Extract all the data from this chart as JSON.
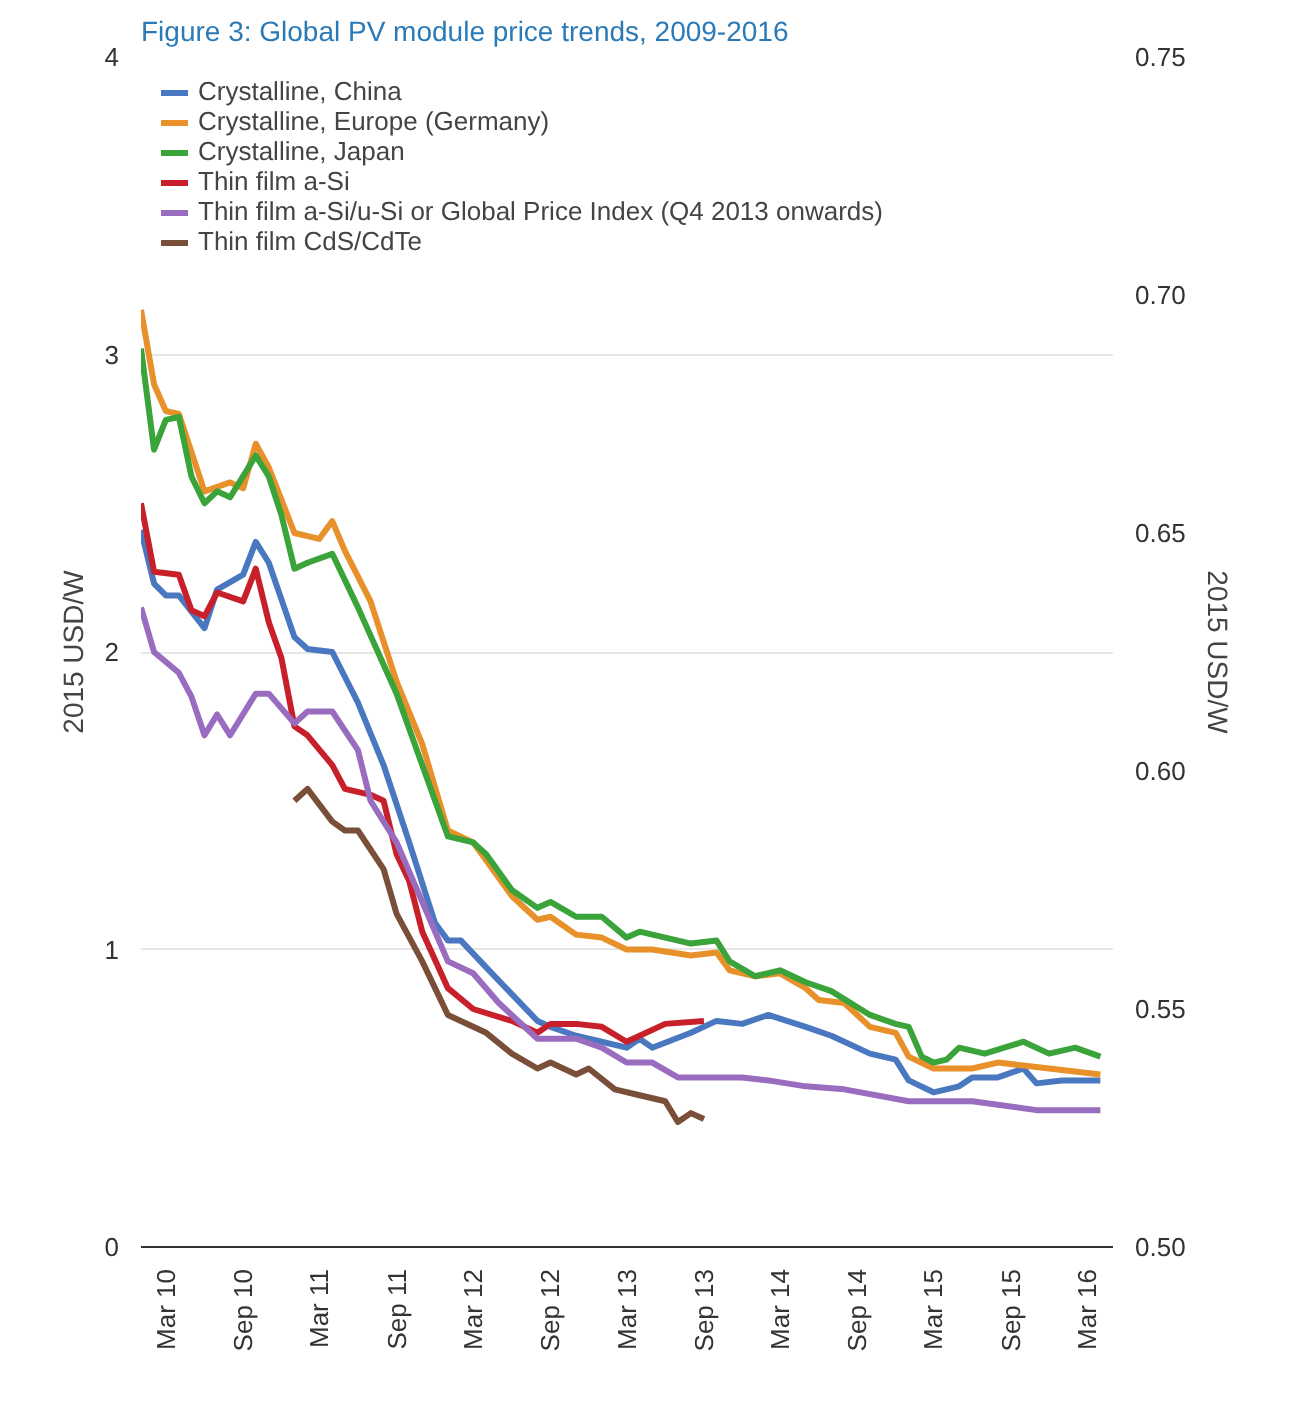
{
  "chart_data": {
    "type": "line",
    "title": "Figure 3: Global PV module price trends, 2009-2016",
    "ylabel": "2015 USD/W",
    "y2label": "2015 USD/W",
    "xlim": [
      "2010-01",
      "2016-05"
    ],
    "xticks": [
      {
        "value": "2010-03",
        "label": "Mar 10"
      },
      {
        "value": "2010-09",
        "label": "Sep 10"
      },
      {
        "value": "2011-03",
        "label": "Mar 11"
      },
      {
        "value": "2011-09",
        "label": "Sep 11"
      },
      {
        "value": "2012-03",
        "label": "Mar 12"
      },
      {
        "value": "2012-09",
        "label": "Sep 12"
      },
      {
        "value": "2013-03",
        "label": "Mar 13"
      },
      {
        "value": "2013-09",
        "label": "Sep 13"
      },
      {
        "value": "2014-03",
        "label": "Mar 14"
      },
      {
        "value": "2014-09",
        "label": "Sep 14"
      },
      {
        "value": "2015-03",
        "label": "Mar 15"
      },
      {
        "value": "2015-09",
        "label": "Sep 15"
      },
      {
        "value": "2016-03",
        "label": "Mar 16"
      }
    ],
    "ylim": [
      0,
      4
    ],
    "yticks": [
      0,
      1,
      2,
      3,
      4
    ],
    "y2lim": [
      0.5,
      0.75
    ],
    "y2ticks": [
      {
        "value": 0.5,
        "label": "0.50"
      },
      {
        "value": 0.55,
        "label": "0.55"
      },
      {
        "value": 0.6,
        "label": "0.60"
      },
      {
        "value": 0.65,
        "label": "0.65"
      },
      {
        "value": 0.7,
        "label": "0.70"
      },
      {
        "value": 0.75,
        "label": "0.75"
      }
    ],
    "grid": "y",
    "legend": "top left",
    "line_style": "solid",
    "series": [
      {
        "name": "Crystalline, China",
        "color": "#4a78c0",
        "x": [
          "2010-01",
          "2010-02",
          "2010-03",
          "2010-04",
          "2010-06",
          "2010-07",
          "2010-09",
          "2010-10",
          "2010-11",
          "2011-01",
          "2011-02",
          "2011-04",
          "2011-06",
          "2011-08",
          "2011-10",
          "2011-12",
          "2012-01",
          "2012-02",
          "2012-04",
          "2012-06",
          "2012-08",
          "2012-09",
          "2012-11",
          "2013-01",
          "2013-03",
          "2013-04",
          "2013-05",
          "2013-08",
          "2013-10",
          "2013-12",
          "2014-02",
          "2014-05",
          "2014-07",
          "2014-10",
          "2014-12",
          "2015-01",
          "2015-03",
          "2015-05",
          "2015-06",
          "2015-08",
          "2015-10",
          "2015-11",
          "2016-01",
          "2016-04"
        ],
        "values": [
          2.41,
          2.23,
          2.19,
          2.19,
          2.08,
          2.21,
          2.26,
          2.37,
          2.3,
          2.05,
          2.01,
          2.0,
          1.83,
          1.62,
          1.36,
          1.09,
          1.03,
          1.03,
          0.94,
          0.85,
          0.76,
          0.74,
          0.71,
          0.69,
          0.67,
          0.7,
          0.67,
          0.72,
          0.76,
          0.75,
          0.78,
          0.74,
          0.71,
          0.65,
          0.63,
          0.56,
          0.52,
          0.54,
          0.57,
          0.57,
          0.6,
          0.55,
          0.56,
          0.56
        ]
      },
      {
        "name": "Crystalline, Europe (Germany)",
        "color": "#e8902a",
        "x": [
          "2010-01",
          "2010-02",
          "2010-03",
          "2010-04",
          "2010-06",
          "2010-08",
          "2010-09",
          "2010-10",
          "2010-11",
          "2011-01",
          "2011-03",
          "2011-04",
          "2011-05",
          "2011-07",
          "2011-09",
          "2011-11",
          "2012-01",
          "2012-03",
          "2012-04",
          "2012-06",
          "2012-08",
          "2012-09",
          "2012-11",
          "2013-01",
          "2013-03",
          "2013-05",
          "2013-08",
          "2013-10",
          "2013-11",
          "2014-01",
          "2014-03",
          "2014-05",
          "2014-06",
          "2014-08",
          "2014-10",
          "2014-12",
          "2015-01",
          "2015-03",
          "2015-06",
          "2015-08",
          "2015-10",
          "2015-12",
          "2016-04"
        ],
        "values": [
          3.15,
          2.9,
          2.81,
          2.8,
          2.54,
          2.57,
          2.55,
          2.7,
          2.62,
          2.4,
          2.38,
          2.44,
          2.34,
          2.17,
          1.9,
          1.69,
          1.4,
          1.36,
          1.3,
          1.18,
          1.1,
          1.11,
          1.05,
          1.04,
          1.0,
          1.0,
          0.98,
          0.99,
          0.93,
          0.91,
          0.92,
          0.87,
          0.83,
          0.82,
          0.74,
          0.72,
          0.64,
          0.6,
          0.6,
          0.62,
          0.61,
          0.6,
          0.58
        ]
      },
      {
        "name": "Crystalline, Japan",
        "color": "#3aa33a",
        "x": [
          "2010-01",
          "2010-02",
          "2010-03",
          "2010-04",
          "2010-05",
          "2010-06",
          "2010-07",
          "2010-08",
          "2010-10",
          "2010-11",
          "2010-12",
          "2011-01",
          "2011-02",
          "2011-04",
          "2011-06",
          "2011-09",
          "2011-11",
          "2012-01",
          "2012-03",
          "2012-04",
          "2012-06",
          "2012-08",
          "2012-09",
          "2012-11",
          "2013-01",
          "2013-03",
          "2013-04",
          "2013-06",
          "2013-08",
          "2013-10",
          "2013-11",
          "2014-01",
          "2014-03",
          "2014-05",
          "2014-07",
          "2014-10",
          "2014-12",
          "2015-01",
          "2015-02",
          "2015-03",
          "2015-04",
          "2015-05",
          "2015-07",
          "2015-10",
          "2015-12",
          "2016-02",
          "2016-04"
        ],
        "values": [
          3.02,
          2.68,
          2.78,
          2.79,
          2.59,
          2.5,
          2.54,
          2.52,
          2.66,
          2.59,
          2.46,
          2.28,
          2.3,
          2.33,
          2.15,
          1.86,
          1.62,
          1.38,
          1.36,
          1.32,
          1.2,
          1.14,
          1.16,
          1.11,
          1.11,
          1.04,
          1.06,
          1.04,
          1.02,
          1.03,
          0.96,
          0.91,
          0.93,
          0.89,
          0.86,
          0.78,
          0.75,
          0.74,
          0.64,
          0.62,
          0.63,
          0.67,
          0.65,
          0.69,
          0.65,
          0.67,
          0.64
        ]
      },
      {
        "name": "Thin film a-Si",
        "color": "#c8202a",
        "x": [
          "2010-01",
          "2010-02",
          "2010-04",
          "2010-05",
          "2010-06",
          "2010-07",
          "2010-09",
          "2010-10",
          "2010-11",
          "2010-12",
          "2011-01",
          "2011-02",
          "2011-04",
          "2011-05",
          "2011-07",
          "2011-08",
          "2011-09",
          "2011-10",
          "2011-11",
          "2012-01",
          "2012-03",
          "2012-06",
          "2012-08",
          "2012-09",
          "2012-11",
          "2013-01",
          "2013-03",
          "2013-04",
          "2013-06",
          "2013-09"
        ],
        "values": [
          2.5,
          2.27,
          2.26,
          2.14,
          2.12,
          2.2,
          2.17,
          2.28,
          2.1,
          1.98,
          1.75,
          1.72,
          1.62,
          1.54,
          1.52,
          1.5,
          1.32,
          1.23,
          1.06,
          0.87,
          0.8,
          0.76,
          0.72,
          0.75,
          0.75,
          0.74,
          0.69,
          0.71,
          0.75,
          0.76
        ]
      },
      {
        "name": "Thin film a-Si/u-Si or Global Price Index (Q4 2013 onwards)",
        "color": "#9a6cc0",
        "x": [
          "2010-01",
          "2010-02",
          "2010-04",
          "2010-05",
          "2010-06",
          "2010-07",
          "2010-08",
          "2010-10",
          "2010-11",
          "2011-01",
          "2011-02",
          "2011-04",
          "2011-06",
          "2011-07",
          "2011-09",
          "2011-11",
          "2012-01",
          "2012-03",
          "2012-05",
          "2012-08",
          "2012-11",
          "2013-01",
          "2013-03",
          "2013-05",
          "2013-07",
          "2013-09",
          "2013-12",
          "2014-02",
          "2014-05",
          "2014-08",
          "2015-01",
          "2015-06",
          "2015-11",
          "2016-04"
        ],
        "values": [
          2.15,
          2.0,
          1.93,
          1.85,
          1.72,
          1.79,
          1.72,
          1.86,
          1.86,
          1.76,
          1.8,
          1.8,
          1.67,
          1.5,
          1.36,
          1.16,
          0.96,
          0.92,
          0.82,
          0.7,
          0.7,
          0.67,
          0.62,
          0.62,
          0.57,
          0.57,
          0.57,
          0.56,
          0.54,
          0.53,
          0.49,
          0.49,
          0.46,
          0.46
        ]
      },
      {
        "name": "Thin film CdS/CdTe",
        "color": "#7a4f3a",
        "x": [
          "2011-01",
          "2011-02",
          "2011-04",
          "2011-05",
          "2011-06",
          "2011-08",
          "2011-09",
          "2011-11",
          "2012-01",
          "2012-04",
          "2012-06",
          "2012-08",
          "2012-09",
          "2012-11",
          "2012-12",
          "2013-02",
          "2013-04",
          "2013-06",
          "2013-07",
          "2013-08",
          "2013-09"
        ],
        "values": [
          1.5,
          1.54,
          1.43,
          1.4,
          1.4,
          1.27,
          1.12,
          0.96,
          0.78,
          0.72,
          0.65,
          0.6,
          0.62,
          0.58,
          0.6,
          0.53,
          0.51,
          0.49,
          0.42,
          0.45,
          0.43
        ]
      }
    ]
  }
}
